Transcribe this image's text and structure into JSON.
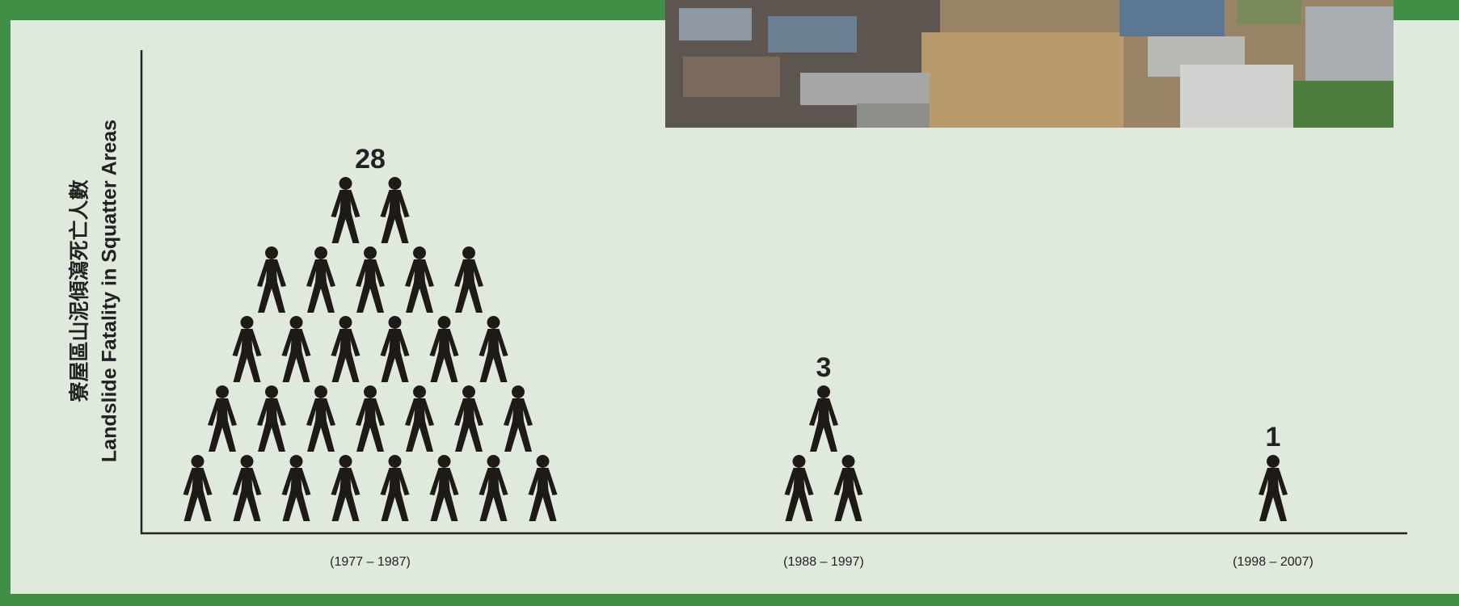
{
  "chart_data": {
    "type": "pictograph",
    "y_label": [
      "寮屋區山泥傾瀉死亡人數",
      "Landslide Fatality in Squatter Areas"
    ],
    "categories": [
      "(1977 – 1987)",
      "(1988 – 1997)",
      "(1998 – 2007)"
    ],
    "values": [
      28,
      3,
      1
    ],
    "color": "#1e1a17"
  }
}
